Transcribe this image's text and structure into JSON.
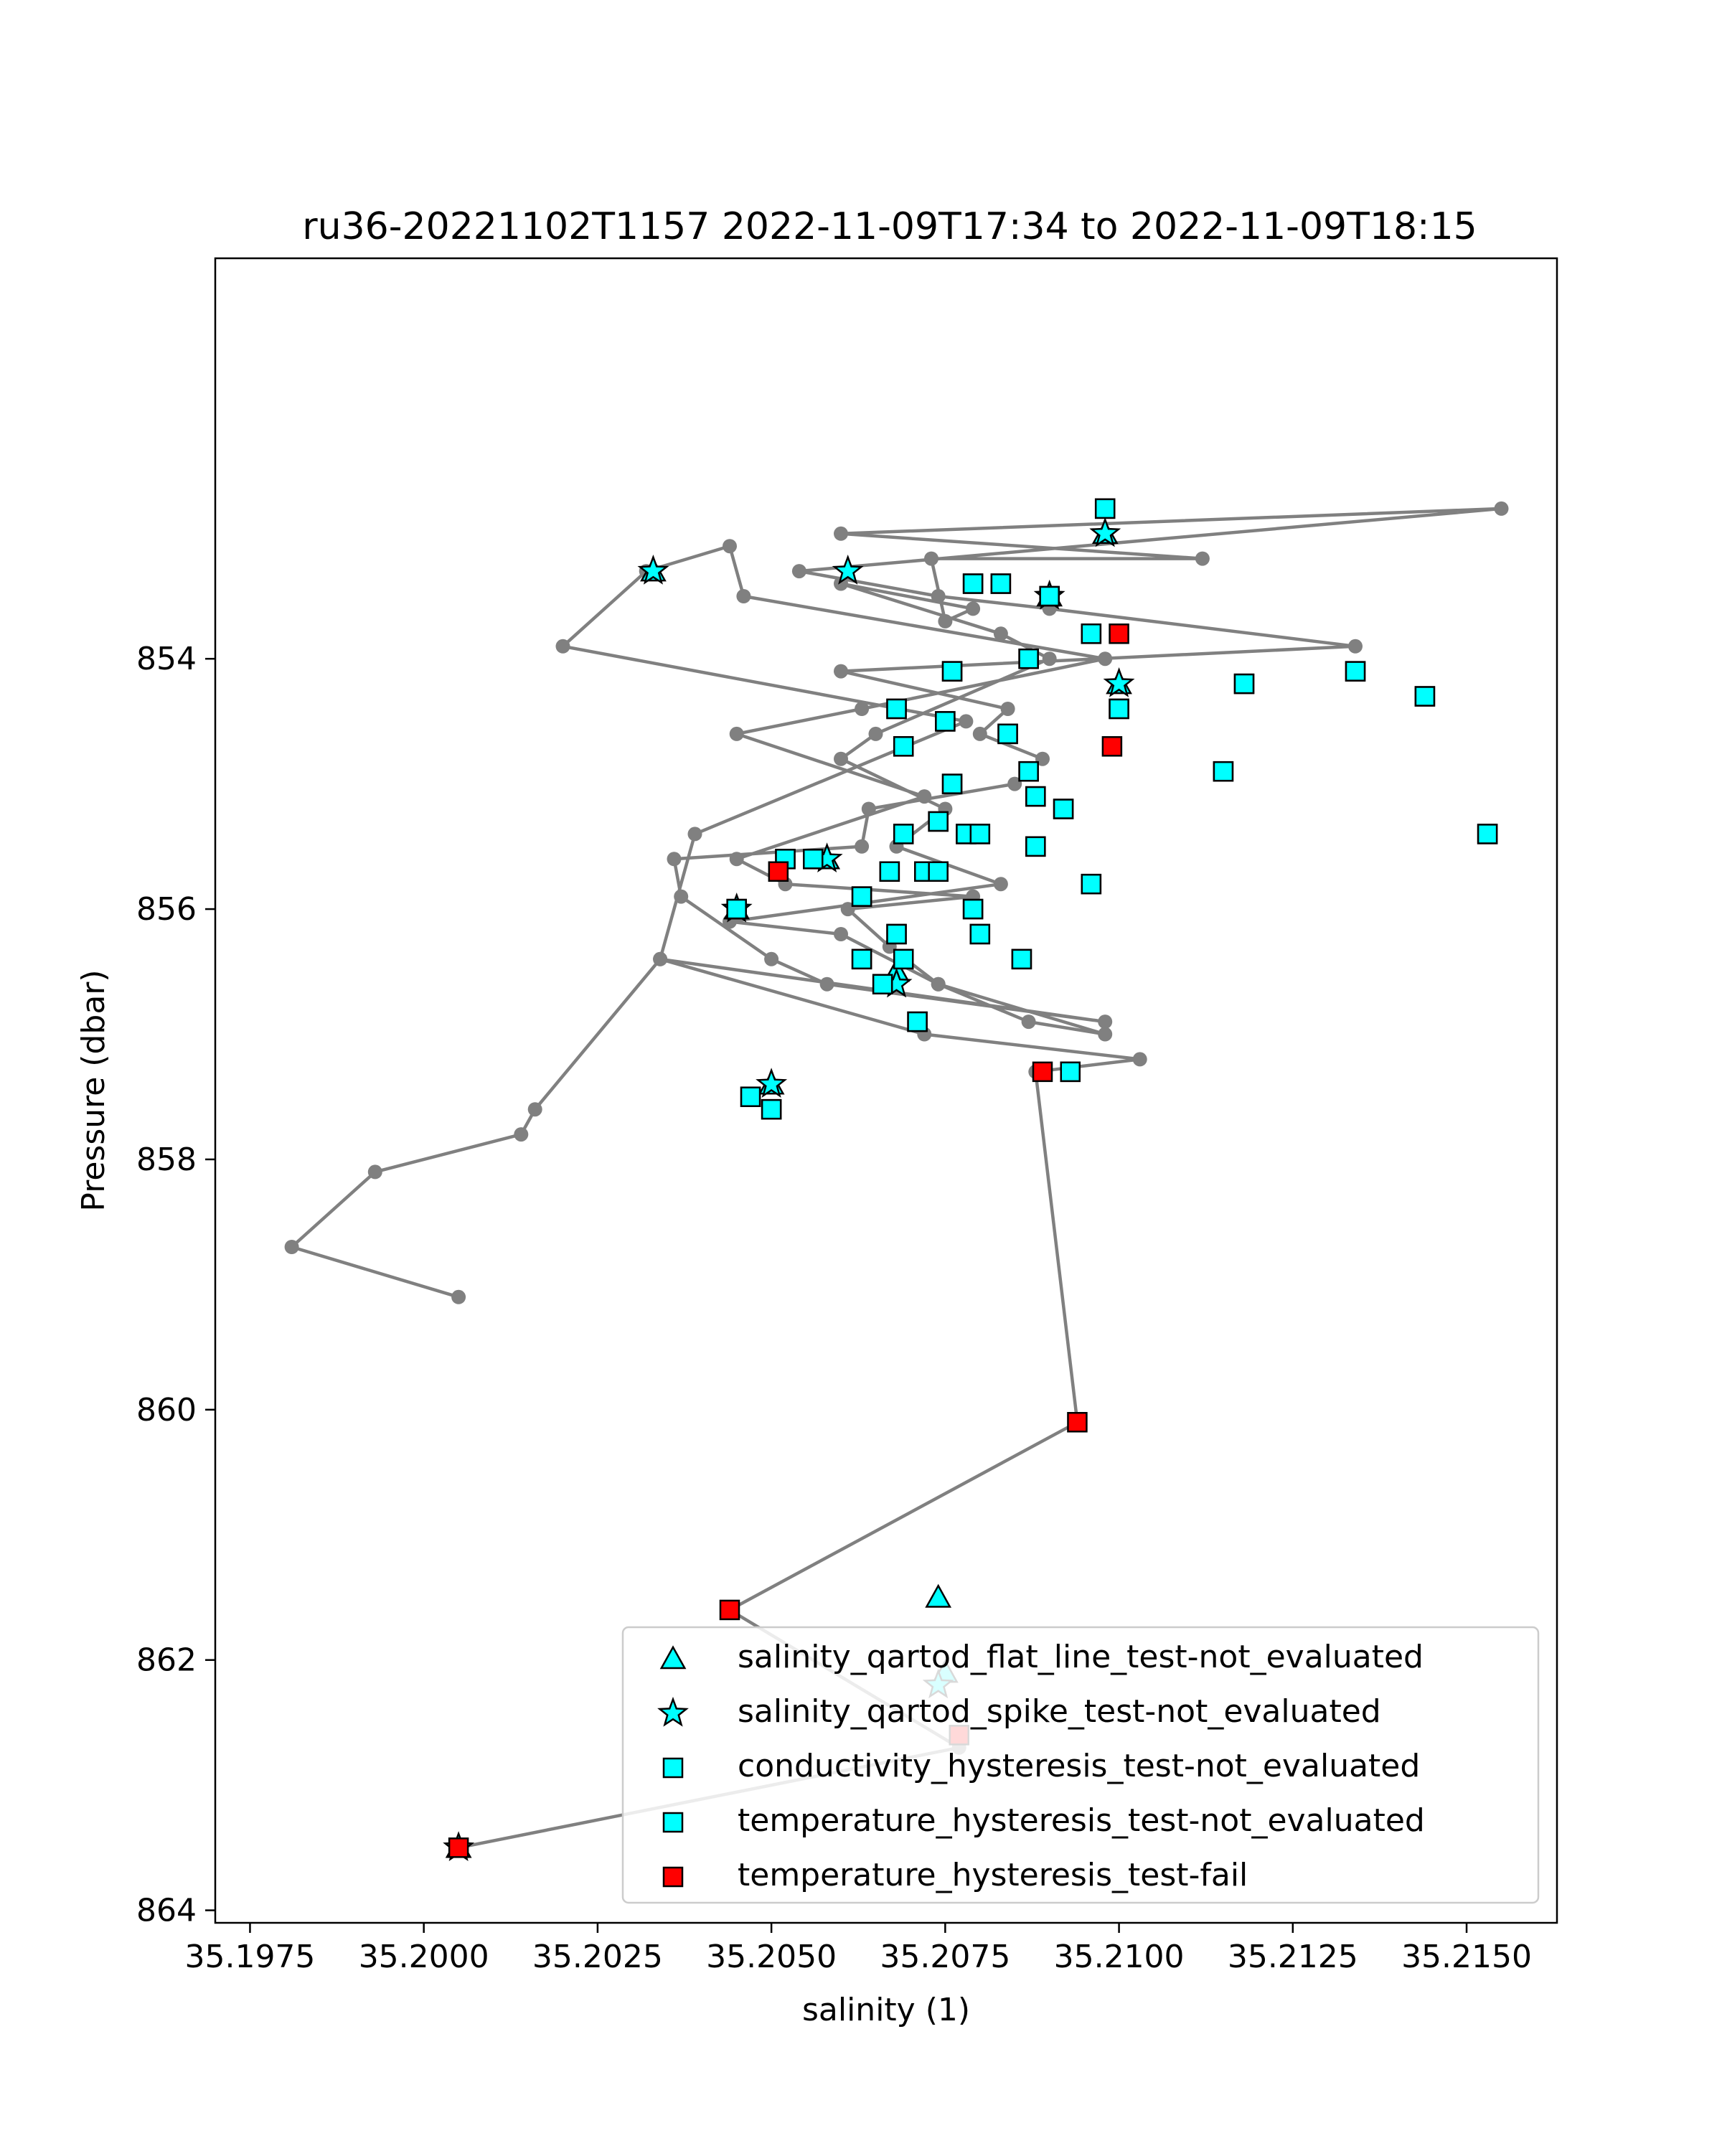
{
  "chart_data": {
    "type": "scatter",
    "title": "ru36-20221102T1157 2022-11-09T17:34 to 2022-11-09T18:15",
    "xlabel": "salinity (1)",
    "ylabel": "Pressure (dbar)",
    "xlim": [
      35.197,
      35.2163
    ],
    "ylim": [
      864.1,
      850.8
    ],
    "y_inverted": true,
    "grid": false,
    "legend_position": "lower-right",
    "x_ticks": [
      35.1975,
      35.2,
      35.2025,
      35.205,
      35.2075,
      35.21,
      35.2125,
      35.215
    ],
    "x_tick_labels": [
      "35.1975",
      "35.2000",
      "35.2025",
      "35.2050",
      "35.2075",
      "35.2100",
      "35.2125",
      "35.2150"
    ],
    "y_ticks": [
      854,
      856,
      858,
      860,
      862,
      864
    ],
    "y_tick_labels": [
      "854",
      "856",
      "858",
      "860",
      "862",
      "864"
    ],
    "colors": {
      "line": "#808080",
      "not_evaluated": "#00ffff",
      "fail": "#ff0000",
      "marker_edge": "#000000"
    },
    "profile_line": {
      "x": [
        35.2005,
        35.2077,
        35.2044,
        35.2094,
        35.2088,
        35.2103,
        35.2072,
        35.2034,
        35.2039,
        35.2078,
        35.202,
        35.2032,
        35.2044,
        35.2046,
        35.2098,
        35.2063,
        35.2045,
        35.2072,
        35.2045,
        35.2052,
        35.2079,
        35.2061,
        35.2067,
        35.2074,
        35.2087,
        35.2098,
        35.2074,
        35.206,
        35.2044,
        35.2083,
        35.2068,
        35.2075,
        35.206,
        35.2065,
        35.209,
        35.2083,
        35.206,
        35.2079,
        35.2075,
        35.2073,
        35.2112,
        35.206,
        35.2155,
        35.2054,
        35.2074,
        35.209,
        35.2134,
        35.206,
        35.2084,
        35.208,
        35.2089,
        35.2085,
        35.2064,
        35.2063,
        35.2036,
        35.2037,
        35.205,
        35.2058,
        35.2098,
        35.2034,
        35.2016,
        35.2014,
        35.1993,
        35.1981,
        35.2005
      ],
      "y": [
        863.5,
        862.7,
        861.6,
        860.1,
        857.3,
        857.2,
        857.0,
        856.4,
        855.4,
        854.5,
        853.9,
        853.3,
        853.1,
        853.5,
        854.0,
        854.4,
        854.6,
        855.1,
        855.6,
        855.8,
        855.9,
        856.0,
        856.3,
        856.6,
        856.9,
        857.0,
        856.6,
        856.2,
        856.1,
        855.8,
        855.5,
        855.2,
        854.8,
        854.6,
        854.0,
        853.8,
        853.4,
        853.6,
        853.7,
        853.2,
        853.2,
        853.0,
        852.8,
        853.3,
        853.5,
        853.6,
        853.9,
        854.1,
        854.4,
        854.6,
        854.8,
        855.0,
        855.2,
        855.5,
        855.6,
        855.9,
        856.4,
        856.6,
        856.9,
        856.4,
        857.6,
        857.8,
        858.1,
        858.7,
        859.1
      ]
    },
    "series": [
      {
        "name": "salinity_qartod_flat_line_test-not_evaluated",
        "marker": "triangle",
        "color": "#00ffff",
        "x": [
          35.2005,
          35.2075,
          35.2074,
          35.205,
          35.2058,
          35.2068,
          35.2045,
          35.21,
          35.2098,
          35.209,
          35.2033
        ],
        "y": [
          863.5,
          862.1,
          861.5,
          857.4,
          855.6,
          856.5,
          856.0,
          854.2,
          853.0,
          853.5,
          853.3
        ]
      },
      {
        "name": "salinity_qartod_spike_test-not_evaluated",
        "marker": "star",
        "color": "#00ffff",
        "x": [
          35.2005,
          35.2074,
          35.205,
          35.2058,
          35.2068,
          35.2045,
          35.21,
          35.2098,
          35.209,
          35.2061,
          35.2033
        ],
        "y": [
          863.5,
          862.2,
          857.4,
          855.6,
          856.6,
          856.0,
          854.2,
          853.0,
          853.5,
          853.3,
          853.3
        ]
      },
      {
        "name": "conductivity_hysteresis_test-not_evaluated",
        "marker": "square",
        "color": "#00ffff",
        "x": [
          35.2098,
          35.2083,
          35.2079,
          35.209,
          35.2096,
          35.2087,
          35.2076,
          35.2068,
          35.2075,
          35.2069,
          35.2084,
          35.21,
          35.2134,
          35.2118,
          35.2144,
          35.2115,
          35.2076,
          35.2087,
          35.2088,
          35.2092,
          35.2069,
          35.2074,
          35.2078,
          35.208,
          35.2153,
          35.2052,
          35.2056,
          35.2072,
          35.2074,
          35.2067,
          35.2088,
          35.2096,
          35.2063,
          35.2045,
          35.2079,
          35.208,
          35.2068,
          35.2069,
          35.2063,
          35.2086,
          35.2066,
          35.2071,
          35.2047,
          35.2093,
          35.205
        ],
        "y": [
          852.8,
          853.4,
          853.4,
          853.5,
          853.8,
          854.0,
          854.1,
          854.4,
          854.5,
          854.7,
          854.6,
          854.4,
          854.1,
          854.2,
          854.3,
          854.9,
          855.0,
          854.9,
          855.1,
          855.2,
          855.4,
          855.3,
          855.4,
          855.4,
          855.4,
          855.6,
          855.6,
          855.7,
          855.7,
          855.7,
          855.5,
          855.8,
          855.9,
          856.0,
          856.0,
          856.2,
          856.2,
          856.4,
          856.4,
          856.4,
          856.6,
          856.9,
          857.5,
          857.3,
          857.6
        ]
      },
      {
        "name": "temperature_hysteresis_test-not_evaluated",
        "marker": "square",
        "color": "#00ffff",
        "x": [
          35.2098,
          35.2083,
          35.2079,
          35.209,
          35.2096,
          35.2087,
          35.2076,
          35.2068,
          35.2075,
          35.2069,
          35.2084,
          35.21,
          35.2134,
          35.2118,
          35.2144,
          35.2115,
          35.2076,
          35.2087,
          35.2088,
          35.2092,
          35.2069,
          35.2074,
          35.2078,
          35.208,
          35.2153,
          35.2052,
          35.2056,
          35.2072,
          35.2074,
          35.2067,
          35.2088,
          35.2096,
          35.2063,
          35.2045,
          35.2079,
          35.208,
          35.2068,
          35.2069,
          35.2063,
          35.2086,
          35.2066,
          35.2071,
          35.2047,
          35.2093,
          35.205
        ],
        "y": [
          852.8,
          853.4,
          853.4,
          853.5,
          853.8,
          854.0,
          854.1,
          854.4,
          854.5,
          854.7,
          854.6,
          854.4,
          854.1,
          854.2,
          854.3,
          854.9,
          855.0,
          854.9,
          855.1,
          855.2,
          855.4,
          855.3,
          855.4,
          855.4,
          855.4,
          855.6,
          855.6,
          855.7,
          855.7,
          855.7,
          855.5,
          855.8,
          855.9,
          856.0,
          856.0,
          856.2,
          856.2,
          856.4,
          856.4,
          856.4,
          856.6,
          856.9,
          857.5,
          857.3,
          857.6
        ]
      },
      {
        "name": "temperature_hysteresis_test-fail",
        "marker": "square",
        "color": "#ff0000",
        "x": [
          35.2005,
          35.2077,
          35.2044,
          35.2094,
          35.2089,
          35.2051,
          35.2099,
          35.21
        ],
        "y": [
          863.5,
          862.6,
          861.6,
          860.1,
          857.3,
          855.7,
          854.7,
          853.8
        ]
      }
    ],
    "legend": [
      {
        "label": "salinity_qartod_flat_line_test-not_evaluated",
        "marker": "triangle",
        "color": "#00ffff"
      },
      {
        "label": "salinity_qartod_spike_test-not_evaluated",
        "marker": "star",
        "color": "#00ffff"
      },
      {
        "label": "conductivity_hysteresis_test-not_evaluated",
        "marker": "square",
        "color": "#00ffff"
      },
      {
        "label": "temperature_hysteresis_test-not_evaluated",
        "marker": "square",
        "color": "#00ffff"
      },
      {
        "label": "temperature_hysteresis_test-fail",
        "marker": "square",
        "color": "#ff0000"
      }
    ]
  }
}
